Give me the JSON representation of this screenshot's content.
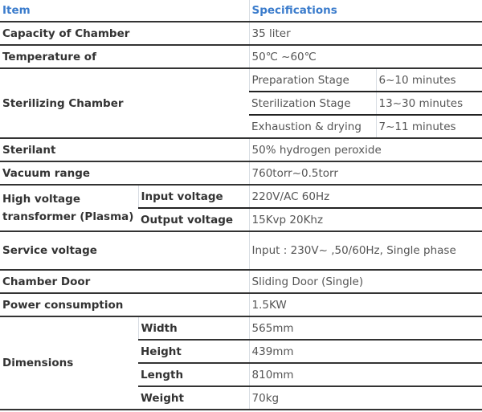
{
  "header": {
    "item": "Item",
    "specifications": "Specifications"
  },
  "rows": {
    "capacity": {
      "label": "Capacity of Chamber",
      "value": "35 liter"
    },
    "temperature": {
      "label": "Temperature of",
      "value": "50℃ ~60℃"
    },
    "sterilizing": {
      "label": "Sterilizing Chamber",
      "stages": [
        {
          "name": "Preparation Stage",
          "value": "6~10 minutes"
        },
        {
          "name": "Sterilization Stage",
          "value": "13~30 minutes"
        },
        {
          "name": "Exhaustion & drying",
          "value": "7~11 minutes"
        }
      ]
    },
    "sterilant": {
      "label": "Sterilant",
      "value": "50% hydrogen peroxide"
    },
    "vacuum": {
      "label": "Vacuum range",
      "value": "760torr~0.5torr"
    },
    "transformer": {
      "label": "High voltage transformer (Plasma)",
      "items": [
        {
          "name": "Input voltage",
          "value": "220V/AC 60Hz"
        },
        {
          "name": "Output voltage",
          "value": "15Kvp 20Khz"
        }
      ]
    },
    "service": {
      "label": "Service voltage",
      "value": "Input : 230V~ ,50/60Hz, Single phase"
    },
    "door": {
      "label": "Chamber Door",
      "value": "Sliding Door (Single)"
    },
    "power": {
      "label": "Power consumption",
      "value": "1.5KW"
    },
    "dimensions": {
      "label": "Dimensions",
      "items": [
        {
          "name": "Width",
          "value": "565mm"
        },
        {
          "name": "Height",
          "value": "439mm"
        },
        {
          "name": "Length",
          "value": "810mm"
        },
        {
          "name": "Weight",
          "value": "70kg"
        }
      ]
    }
  },
  "colors": {
    "header_text": "#3b7ccc",
    "rule": "#333333"
  }
}
